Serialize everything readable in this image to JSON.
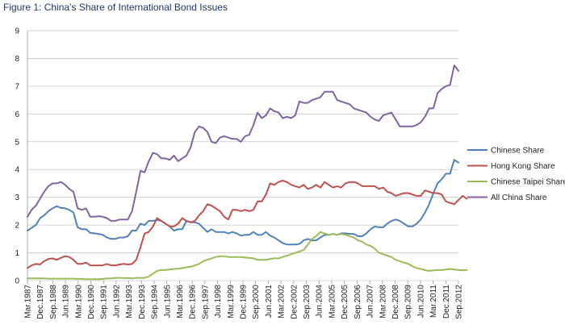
{
  "figure_title": "Figure 1: China’s Share of International Bond Issues",
  "chart_data": {
    "type": "line",
    "title": "",
    "xlabel": "",
    "ylabel": "",
    "ylim": [
      0,
      9
    ],
    "y_ticks": [
      0,
      1,
      2,
      3,
      4,
      5,
      6,
      7,
      8,
      9
    ],
    "grid": "horizontal",
    "legend_position": "right",
    "x_start": "Mar.1987",
    "x_tick_labels": [
      "Mar.1987",
      "Dec.1987",
      "Sep.1988",
      "Jun.1989",
      "Mar.1990",
      "Dec.1990",
      "Sep.1991",
      "Jun.1992",
      "Mar.1993",
      "Dec.1993",
      "Sep.1994",
      "Jun.1995",
      "Mar.1996",
      "Dec.1996",
      "Sep.1997",
      "Jun.1998",
      "Mar.1999",
      "Dec.1999",
      "Sep.2000",
      "Jun.2001",
      "Mar.2002",
      "Dec.2002",
      "Sep.2003",
      "Jun.2004",
      "Mar.2005",
      "Dec.2005",
      "Sep.2006",
      "Jun.2007",
      "Mar.2008",
      "Dec.2008",
      "Sep.2009",
      "Jun.2010",
      "Mar.2011",
      "Dec.2011",
      "Sep.2012"
    ],
    "series": [
      {
        "name": "Chinese Share",
        "color": "#4f81bd",
        "values": [
          1.8,
          1.9,
          2.0,
          2.25,
          2.35,
          2.5,
          2.6,
          2.68,
          2.62,
          2.6,
          2.55,
          2.45,
          1.92,
          1.85,
          1.85,
          1.72,
          1.7,
          1.68,
          1.65,
          1.55,
          1.5,
          1.5,
          1.55,
          1.55,
          1.6,
          1.8,
          1.8,
          2.05,
          2.0,
          2.15,
          2.15,
          2.18,
          2.15,
          2.05,
          1.95,
          1.8,
          1.85,
          1.85,
          2.15,
          2.1,
          2.1,
          2.05,
          1.9,
          1.75,
          1.85,
          1.75,
          1.75,
          1.75,
          1.7,
          1.75,
          1.7,
          1.62,
          1.65,
          1.65,
          1.75,
          1.65,
          1.65,
          1.75,
          1.62,
          1.55,
          1.45,
          1.35,
          1.3,
          1.3,
          1.3,
          1.32,
          1.45,
          1.5,
          1.45,
          1.45,
          1.55,
          1.65,
          1.65,
          1.68,
          1.65,
          1.7,
          1.7,
          1.68,
          1.68,
          1.6,
          1.6,
          1.7,
          1.85,
          1.95,
          1.92,
          1.92,
          2.05,
          2.15,
          2.2,
          2.15,
          2.05,
          1.95,
          1.95,
          2.05,
          2.2,
          2.45,
          2.75,
          3.15,
          3.5,
          3.65,
          3.85,
          3.85,
          4.35,
          4.25
        ]
      },
      {
        "name": "Hong Kong Share",
        "color": "#c0504d",
        "values": [
          0.45,
          0.55,
          0.6,
          0.58,
          0.7,
          0.78,
          0.8,
          0.75,
          0.82,
          0.88,
          0.85,
          0.75,
          0.6,
          0.6,
          0.65,
          0.55,
          0.55,
          0.55,
          0.55,
          0.6,
          0.55,
          0.55,
          0.58,
          0.6,
          0.58,
          0.6,
          0.75,
          1.2,
          1.7,
          1.75,
          1.95,
          2.25,
          2.15,
          2.05,
          1.95,
          1.95,
          2.05,
          2.25,
          2.15,
          2.1,
          2.15,
          2.35,
          2.5,
          2.75,
          2.7,
          2.6,
          2.5,
          2.3,
          2.2,
          2.55,
          2.55,
          2.5,
          2.55,
          2.5,
          2.55,
          2.85,
          2.85,
          3.1,
          3.5,
          3.45,
          3.55,
          3.6,
          3.55,
          3.45,
          3.4,
          3.35,
          3.45,
          3.3,
          3.35,
          3.45,
          3.35,
          3.55,
          3.45,
          3.35,
          3.4,
          3.35,
          3.5,
          3.55,
          3.55,
          3.5,
          3.4,
          3.4,
          3.4,
          3.4,
          3.3,
          3.35,
          3.2,
          3.15,
          3.05,
          3.1,
          3.15,
          3.15,
          3.1,
          3.05,
          3.05,
          3.25,
          3.2,
          3.15,
          3.15,
          3.1,
          2.85,
          2.8,
          2.75,
          2.9,
          3.05,
          2.95
        ]
      },
      {
        "name": "Chinese Taipei Share",
        "color": "#9bbb59",
        "values": [
          0.08,
          0.08,
          0.08,
          0.08,
          0.08,
          0.07,
          0.07,
          0.07,
          0.07,
          0.07,
          0.07,
          0.07,
          0.06,
          0.06,
          0.05,
          0.05,
          0.05,
          0.05,
          0.06,
          0.08,
          0.08,
          0.1,
          0.1,
          0.09,
          0.09,
          0.08,
          0.1,
          0.1,
          0.1,
          0.15,
          0.25,
          0.35,
          0.38,
          0.38,
          0.4,
          0.42,
          0.43,
          0.45,
          0.48,
          0.5,
          0.55,
          0.6,
          0.7,
          0.75,
          0.8,
          0.85,
          0.88,
          0.88,
          0.85,
          0.85,
          0.85,
          0.85,
          0.83,
          0.82,
          0.8,
          0.75,
          0.75,
          0.75,
          0.78,
          0.8,
          0.8,
          0.85,
          0.9,
          0.95,
          1.0,
          1.05,
          1.1,
          1.3,
          1.5,
          1.6,
          1.75,
          1.7,
          1.65,
          1.68,
          1.65,
          1.68,
          1.65,
          1.6,
          1.55,
          1.45,
          1.4,
          1.3,
          1.25,
          1.15,
          1.0,
          0.95,
          0.9,
          0.85,
          0.75,
          0.7,
          0.65,
          0.6,
          0.52,
          0.45,
          0.42,
          0.38,
          0.35,
          0.37,
          0.38,
          0.38,
          0.4,
          0.42,
          0.4,
          0.38,
          0.37,
          0.38
        ]
      },
      {
        "name": "All China Share",
        "color": "#8064a2",
        "values": [
          2.3,
          2.55,
          2.7,
          2.95,
          3.2,
          3.4,
          3.5,
          3.5,
          3.55,
          3.45,
          3.3,
          3.2,
          2.6,
          2.55,
          2.6,
          2.3,
          2.3,
          2.32,
          2.3,
          2.25,
          2.15,
          2.15,
          2.2,
          2.2,
          2.2,
          2.5,
          3.2,
          3.95,
          3.9,
          4.3,
          4.6,
          4.55,
          4.4,
          4.4,
          4.35,
          4.5,
          4.3,
          4.4,
          4.5,
          4.8,
          5.35,
          5.55,
          5.5,
          5.35,
          5.0,
          4.95,
          5.15,
          5.2,
          5.15,
          5.1,
          5.1,
          5.0,
          5.2,
          5.25,
          5.6,
          6.05,
          5.85,
          5.95,
          6.2,
          6.1,
          6.05,
          5.85,
          5.9,
          5.85,
          5.95,
          6.45,
          6.4,
          6.4,
          6.5,
          6.55,
          6.6,
          6.8,
          6.8,
          6.8,
          6.5,
          6.45,
          6.4,
          6.35,
          6.2,
          6.15,
          6.1,
          6.05,
          5.9,
          5.8,
          5.75,
          5.95,
          6.0,
          6.05,
          5.8,
          5.55,
          5.55,
          5.55,
          5.55,
          5.6,
          5.7,
          5.9,
          6.2,
          6.2,
          6.75,
          6.9,
          7.0,
          7.05,
          7.75,
          7.55
        ]
      }
    ]
  }
}
